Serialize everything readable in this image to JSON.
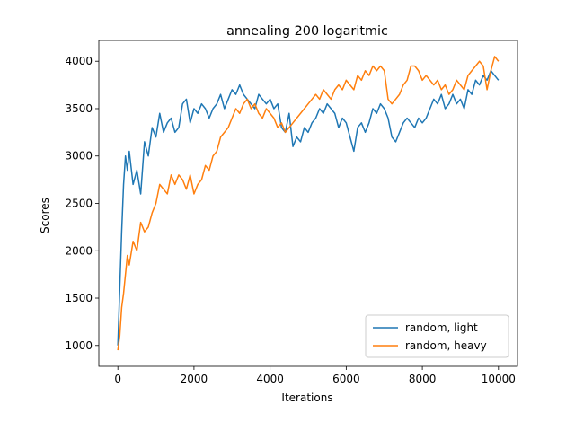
{
  "chart_data": {
    "type": "line",
    "title": "annealing 200 logaritmic",
    "xlabel": "Iterations",
    "ylabel": "Scores",
    "xlim": [
      -500,
      10500
    ],
    "ylim": [
      780,
      4220
    ],
    "xticks": [
      0,
      2000,
      4000,
      6000,
      8000,
      10000
    ],
    "yticks": [
      1000,
      1500,
      2000,
      2500,
      3000,
      3500,
      4000
    ],
    "grid": false,
    "legend_position": "lower-right",
    "series": [
      {
        "name": "random, light",
        "color": "#1f77b4",
        "x": [
          0,
          50,
          100,
          150,
          200,
          250,
          300,
          400,
          500,
          600,
          700,
          800,
          900,
          1000,
          1100,
          1200,
          1300,
          1400,
          1500,
          1600,
          1700,
          1800,
          1900,
          2000,
          2100,
          2200,
          2300,
          2400,
          2500,
          2600,
          2700,
          2800,
          2900,
          3000,
          3100,
          3200,
          3300,
          3400,
          3500,
          3600,
          3700,
          3800,
          3900,
          4000,
          4100,
          4200,
          4300,
          4400,
          4500,
          4600,
          4700,
          4800,
          4900,
          5000,
          5100,
          5200,
          5300,
          5400,
          5500,
          5600,
          5700,
          5800,
          5900,
          6000,
          6100,
          6200,
          6300,
          6400,
          6500,
          6600,
          6700,
          6800,
          6900,
          7000,
          7100,
          7200,
          7300,
          7400,
          7500,
          7600,
          7700,
          7800,
          7900,
          8000,
          8100,
          8200,
          8300,
          8400,
          8500,
          8600,
          8700,
          8800,
          8900,
          9000,
          9100,
          9200,
          9300,
          9400,
          9500,
          9600,
          9700,
          9800,
          9900,
          10000
        ],
        "values": [
          1000,
          1600,
          2200,
          2700,
          3000,
          2850,
          3050,
          2700,
          2850,
          2600,
          3150,
          3000,
          3300,
          3200,
          3450,
          3250,
          3350,
          3400,
          3250,
          3300,
          3550,
          3600,
          3350,
          3500,
          3450,
          3550,
          3500,
          3400,
          3500,
          3550,
          3650,
          3500,
          3600,
          3700,
          3650,
          3750,
          3650,
          3600,
          3550,
          3500,
          3650,
          3600,
          3550,
          3600,
          3500,
          3550,
          3300,
          3250,
          3450,
          3100,
          3200,
          3150,
          3300,
          3250,
          3350,
          3400,
          3500,
          3450,
          3550,
          3500,
          3450,
          3300,
          3400,
          3350,
          3200,
          3050,
          3300,
          3350,
          3250,
          3350,
          3500,
          3450,
          3550,
          3500,
          3400,
          3200,
          3150,
          3250,
          3350,
          3400,
          3350,
          3300,
          3400,
          3350,
          3400,
          3500,
          3600,
          3550,
          3650,
          3500,
          3550,
          3650,
          3550,
          3600,
          3500,
          3700,
          3650,
          3800,
          3750,
          3850,
          3800,
          3900,
          3850,
          3800
        ]
      },
      {
        "name": "random, heavy",
        "color": "#ff7f0e",
        "x": [
          0,
          50,
          100,
          150,
          200,
          250,
          300,
          400,
          500,
          600,
          700,
          800,
          900,
          1000,
          1100,
          1200,
          1300,
          1400,
          1500,
          1600,
          1700,
          1800,
          1900,
          2000,
          2100,
          2200,
          2300,
          2400,
          2500,
          2600,
          2700,
          2800,
          2900,
          3000,
          3100,
          3200,
          3300,
          3400,
          3500,
          3600,
          3700,
          3800,
          3900,
          4000,
          4100,
          4200,
          4300,
          4400,
          4500,
          4600,
          4700,
          4800,
          4900,
          5000,
          5100,
          5200,
          5300,
          5400,
          5500,
          5600,
          5700,
          5800,
          5900,
          6000,
          6100,
          6200,
          6300,
          6400,
          6500,
          6600,
          6700,
          6800,
          6900,
          7000,
          7100,
          7200,
          7300,
          7400,
          7500,
          7600,
          7700,
          7800,
          7900,
          8000,
          8100,
          8200,
          8300,
          8400,
          8500,
          8600,
          8700,
          8800,
          8900,
          9000,
          9100,
          9200,
          9300,
          9400,
          9500,
          9600,
          9700,
          9800,
          9900,
          10000
        ],
        "values": [
          950,
          1100,
          1400,
          1550,
          1750,
          1950,
          1850,
          2100,
          2000,
          2300,
          2200,
          2250,
          2400,
          2500,
          2700,
          2650,
          2600,
          2800,
          2700,
          2800,
          2750,
          2650,
          2800,
          2600,
          2700,
          2750,
          2900,
          2850,
          3000,
          3050,
          3200,
          3250,
          3300,
          3400,
          3500,
          3450,
          3550,
          3600,
          3500,
          3550,
          3450,
          3400,
          3500,
          3450,
          3400,
          3300,
          3350,
          3250,
          3300,
          3350,
          3400,
          3450,
          3500,
          3550,
          3600,
          3650,
          3600,
          3700,
          3650,
          3600,
          3700,
          3750,
          3700,
          3800,
          3750,
          3700,
          3850,
          3800,
          3900,
          3850,
          3950,
          3900,
          3950,
          3900,
          3600,
          3550,
          3600,
          3650,
          3750,
          3800,
          3950,
          3950,
          3900,
          3800,
          3850,
          3800,
          3750,
          3800,
          3700,
          3750,
          3650,
          3700,
          3800,
          3750,
          3700,
          3850,
          3900,
          3950,
          4000,
          3950,
          3700,
          3900,
          4050,
          4000
        ]
      }
    ]
  }
}
